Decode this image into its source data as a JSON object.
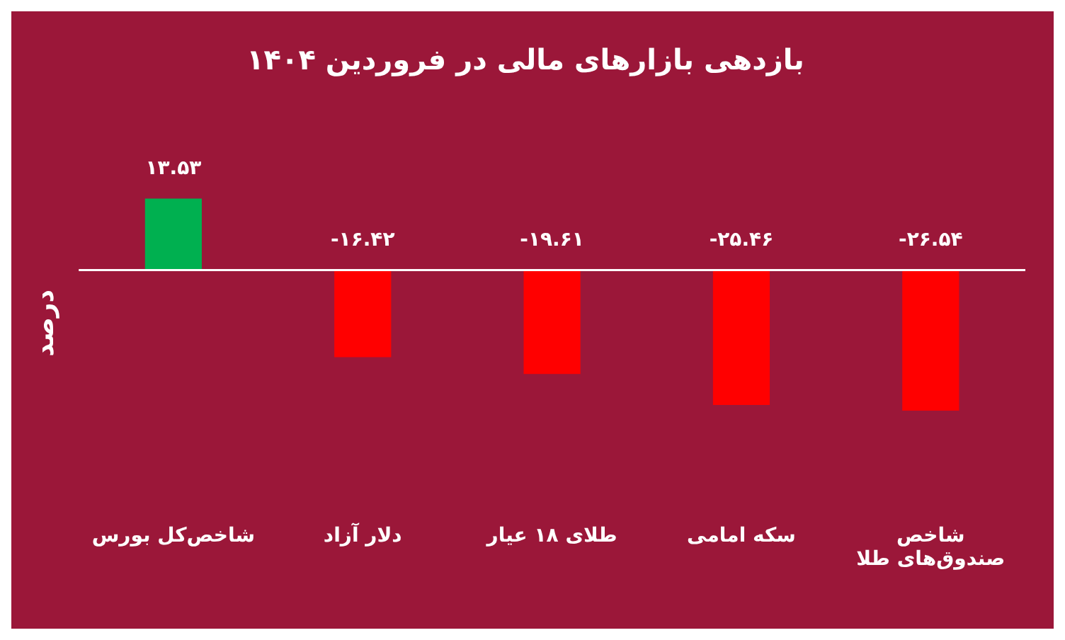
{
  "chart_data": {
    "type": "bar",
    "title": "بازدهی بازارهای مالی در فروردین ۱۴۰۴",
    "ylabel": "درصد",
    "categories": [
      "شاخص‌کل بورس",
      "دلار آزاد",
      "طلای ۱۸ عیار",
      "سکه امامی",
      "شاخص صندوق‌های طلا"
    ],
    "values": [
      13.53,
      -16.42,
      -19.61,
      -25.46,
      -26.54
    ],
    "colors": [
      "#00b050",
      "#ff0000",
      "#ff0000",
      "#ff0000",
      "#ff0000"
    ],
    "value_labels": [
      "۱۳.۵۳",
      "-۱۶.۴۲",
      "-۱۹.۶۱",
      "-۲۵.۴۶",
      "-۲۶.۵۴"
    ],
    "grid": false,
    "legend": false
  }
}
